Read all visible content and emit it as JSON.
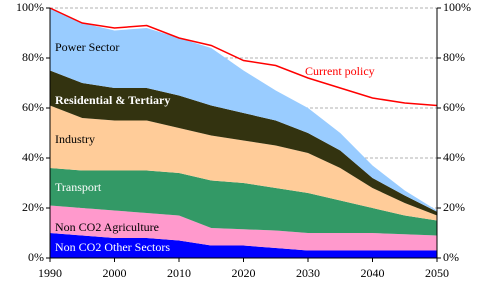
{
  "chart_data": {
    "type": "area",
    "x": [
      1990,
      1995,
      2000,
      2005,
      2010,
      2015,
      2020,
      2025,
      2030,
      2035,
      2040,
      2045,
      2050
    ],
    "series": [
      {
        "name": "Non CO2 Other Sectors",
        "color": "#0000ff",
        "values": [
          10,
          9,
          8,
          8,
          7,
          5,
          5,
          4,
          3,
          3,
          3,
          3,
          3
        ]
      },
      {
        "name": "Non CO2 Agriculture",
        "color": "#ff99cc",
        "values": [
          11,
          11,
          11,
          10,
          10,
          7,
          6.5,
          7,
          7,
          7,
          7,
          6.5,
          6
        ]
      },
      {
        "name": "Transport",
        "color": "#339966",
        "values": [
          15,
          15,
          16,
          17,
          17,
          19,
          18.5,
          17,
          16,
          13,
          10,
          7.5,
          6
        ]
      },
      {
        "name": "Industry",
        "color": "#ffcc99",
        "values": [
          25,
          21,
          20,
          20,
          18,
          18,
          17,
          17,
          16,
          13,
          8,
          5,
          2
        ]
      },
      {
        "name": "Residential & Tertiary",
        "color": "#333310",
        "values": [
          14,
          14,
          13,
          13,
          13,
          12,
          11,
          10,
          8,
          7,
          4,
          3,
          1.5
        ]
      },
      {
        "name": "Power Sector",
        "color": "#99ccff",
        "values": [
          25,
          24,
          23,
          24,
          23,
          23,
          17,
          12,
          10,
          7,
          5,
          2,
          0.5
        ]
      },
      {
        "name": "Current policy",
        "color": "#ff0000",
        "type": "line",
        "values": [
          100,
          94,
          92,
          93,
          88,
          85,
          79,
          77,
          72,
          68,
          64,
          62,
          61
        ]
      }
    ],
    "xlim": [
      1990,
      2050
    ],
    "xticks": [
      1990,
      2000,
      2010,
      2020,
      2030,
      2040,
      2050
    ],
    "ylim": [
      0,
      100
    ],
    "yticks": [
      {
        "value": 0,
        "label": "0%"
      },
      {
        "value": 20,
        "label": "20%"
      },
      {
        "value": 40,
        "label": "40%"
      },
      {
        "value": 60,
        "label": "60%"
      },
      {
        "value": 80,
        "label": "80%"
      },
      {
        "value": 100,
        "label": "100%"
      }
    ],
    "y2lim": [
      0,
      100
    ],
    "y2ticks": [
      {
        "value": 0,
        "label": "0%"
      },
      {
        "value": 20,
        "label": "20%"
      },
      {
        "value": 40,
        "label": "40%"
      },
      {
        "value": 60,
        "label": "60%"
      },
      {
        "value": 80,
        "label": "80%"
      },
      {
        "value": 100,
        "label": "100%"
      }
    ],
    "grid": true
  }
}
